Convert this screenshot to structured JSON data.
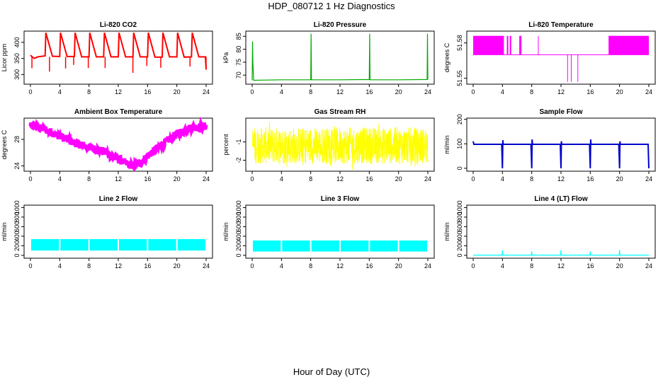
{
  "page": {
    "title": "HDP_080712  1 Hz Diagnostics",
    "xlabel": "Hour of Day (UTC)"
  },
  "chart_data": [
    {
      "type": "line",
      "title": "Li-820 CO2",
      "ylabel": "Licor ppm",
      "color": "#ff0000",
      "xlim": [
        0,
        24
      ],
      "xticks": [
        0,
        4,
        8,
        12,
        16,
        20,
        24
      ],
      "ylim": [
        270,
        435
      ],
      "yticks": [
        300,
        350,
        400
      ],
      "x": [
        0,
        0.5,
        1.0,
        2.0,
        2.1,
        3.0,
        4.0,
        4.1,
        5.0,
        6.0,
        6.1,
        7.0,
        8.0,
        8.1,
        9.0,
        10.0,
        10.1,
        11.0,
        12.0,
        12.1,
        13.0,
        14.0,
        14.1,
        15.0,
        16.0,
        16.1,
        17.0,
        18.0,
        18.1,
        19.0,
        20.0,
        20.1,
        21.0,
        22.0,
        22.1,
        23.0,
        23.9,
        24.0
      ],
      "y": [
        360,
        350,
        355,
        358,
        430,
        357,
        356,
        430,
        356,
        356,
        430,
        355,
        355,
        430,
        355,
        355,
        430,
        355,
        355,
        430,
        355,
        355,
        430,
        355,
        355,
        430,
        354,
        354,
        430,
        355,
        355,
        430,
        354,
        355,
        430,
        355,
        355,
        315
      ]
    },
    {
      "type": "line",
      "title": "Li-820 Pressure",
      "ylabel": "kPa",
      "color": "#00aa00",
      "xlim": [
        0,
        24
      ],
      "xticks": [
        0,
        4,
        8,
        12,
        16,
        20,
        24
      ],
      "ylim": [
        66.5,
        87
      ],
      "yticks": [
        70,
        75,
        80,
        85
      ],
      "x": [
        0,
        0.05,
        0.1,
        0.2,
        4.0,
        8.0,
        8.05,
        8.1,
        12.0,
        16.0,
        16.05,
        16.1,
        20.0,
        23.9,
        23.95,
        24.0
      ],
      "y": [
        68,
        83,
        75,
        68,
        68.2,
        68.2,
        86,
        68.2,
        68.2,
        68.3,
        86,
        68.2,
        68.2,
        68.3,
        86,
        68.3
      ]
    },
    {
      "type": "line",
      "title": "Li-820 Temperature",
      "ylabel": "degrees C",
      "color": "#ff00ff",
      "xlim": [
        0,
        24
      ],
      "xticks": [
        0,
        4,
        8,
        12,
        16,
        20,
        24
      ],
      "ylim": [
        51.545,
        51.59
      ],
      "yticks": [
        51.55,
        51.58
      ],
      "x": [
        0,
        4.2,
        6.5,
        8.9,
        12.8,
        14.5,
        18.5,
        24
      ],
      "y": [
        51.57,
        51.57,
        51.57,
        51.57,
        51.56,
        51.56,
        51.57,
        51.57
      ]
    },
    {
      "type": "line",
      "title": "Ambient Box Temperature",
      "ylabel": "degrees C",
      "color": "#ff00ff",
      "xlim": [
        0,
        24
      ],
      "xticks": [
        0,
        4,
        8,
        12,
        16,
        20,
        24
      ],
      "ylim": [
        23.2,
        31.2
      ],
      "yticks": [
        24,
        28
      ],
      "x": [
        0,
        2,
        4,
        6,
        8,
        10,
        12,
        13,
        14,
        15,
        16,
        18,
        20,
        22,
        24
      ],
      "y": [
        30.2,
        29.5,
        28.5,
        27.5,
        26.8,
        26.2,
        25.0,
        24.4,
        24.0,
        24.4,
        25.5,
        27.2,
        28.8,
        29.8,
        30.0
      ]
    },
    {
      "type": "line",
      "title": "Gas Stream RH",
      "ylabel": "percent",
      "color": "#ffff00",
      "xlim": [
        0,
        24
      ],
      "xticks": [
        0,
        4,
        8,
        12,
        16,
        20,
        24
      ],
      "ylim": [
        -2.6,
        0.3
      ],
      "yticks": [
        -2.0,
        -1.0
      ],
      "x": [
        0,
        4,
        8,
        12,
        16,
        20,
        24
      ],
      "y": [
        -1.2,
        -1.2,
        -1.2,
        -1.2,
        -1.2,
        -1.2,
        -1.2
      ]
    },
    {
      "type": "line",
      "title": "Sample Flow",
      "ylabel": "ml/min",
      "color": "#0000cc",
      "xlim": [
        0,
        24
      ],
      "xticks": [
        0,
        4,
        8,
        12,
        16,
        20,
        24
      ],
      "ylim": [
        -12,
        205
      ],
      "yticks": [
        0,
        100,
        200
      ],
      "x": [
        0,
        0.1,
        3.9,
        4.0,
        4.05,
        4.1,
        7.9,
        8.0,
        8.05,
        8.1,
        11.9,
        12.0,
        12.05,
        12.1,
        15.9,
        16.0,
        16.05,
        16.1,
        19.9,
        20.0,
        20.05,
        20.1,
        23.9,
        24.0
      ],
      "y": [
        110,
        98,
        98,
        0,
        115,
        98,
        98,
        0,
        118,
        98,
        98,
        0,
        110,
        98,
        98,
        0,
        118,
        98,
        98,
        0,
        110,
        98,
        98,
        0
      ]
    },
    {
      "type": "area",
      "title": "Line 2 Flow",
      "ylabel": "ml/min",
      "color": "#00ffff",
      "xlim": [
        0,
        24
      ],
      "xticks": [
        0,
        4,
        8,
        12,
        16,
        20,
        24
      ],
      "ylim": [
        -60,
        1050
      ],
      "yticks": [
        0,
        200,
        400,
        600,
        800,
        1000
      ],
      "x": [
        0,
        4,
        8,
        12,
        16,
        20,
        24
      ],
      "y_low": [
        100,
        100,
        100,
        100,
        100,
        100,
        100
      ],
      "y_high": [
        340,
        340,
        340,
        340,
        340,
        340,
        340
      ]
    },
    {
      "type": "area",
      "title": "Line 3 Flow",
      "ylabel": "ml/min",
      "color": "#00ffff",
      "xlim": [
        0,
        24
      ],
      "xticks": [
        0,
        4,
        8,
        12,
        16,
        20,
        24
      ],
      "ylim": [
        -60,
        1050
      ],
      "yticks": [
        0,
        200,
        400,
        600,
        800,
        1000
      ],
      "x": [
        0,
        4,
        8,
        12,
        16,
        20,
        24
      ],
      "y_low": [
        80,
        80,
        80,
        80,
        80,
        80,
        80
      ],
      "y_high": [
        310,
        310,
        310,
        320,
        320,
        310,
        310
      ]
    },
    {
      "type": "line",
      "title": "Line 4 (LT) Flow",
      "ylabel": "ml/min",
      "color": "#00ffff",
      "xlim": [
        0,
        24
      ],
      "xticks": [
        0,
        4,
        8,
        12,
        16,
        20,
        24
      ],
      "ylim": [
        -60,
        1050
      ],
      "yticks": [
        0,
        200,
        400,
        600,
        800,
        1000
      ],
      "x": [
        0,
        3.95,
        4.0,
        4.05,
        7.95,
        8.0,
        8.05,
        11.95,
        12.0,
        12.05,
        15.95,
        16.0,
        16.05,
        19.95,
        20.0,
        20.05,
        24.0
      ],
      "y": [
        5,
        5,
        100,
        5,
        5,
        80,
        5,
        5,
        110,
        5,
        5,
        80,
        5,
        5,
        110,
        5,
        5
      ]
    }
  ]
}
